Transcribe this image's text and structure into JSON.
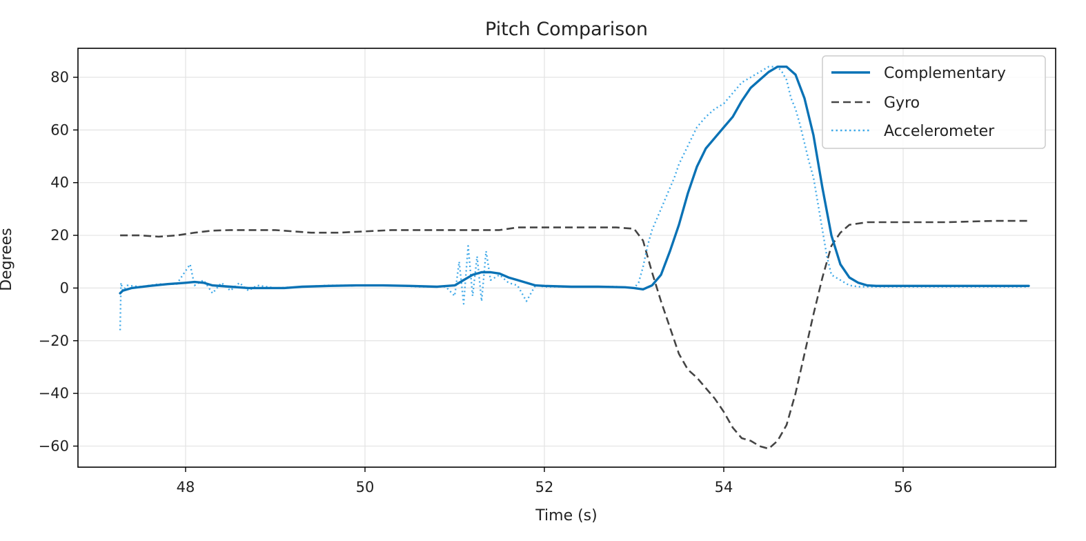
{
  "chart_data": {
    "type": "line",
    "title": "Pitch Comparison",
    "xlabel": "Time (s)",
    "ylabel": "Degrees",
    "xlim": [
      46.8,
      57.7
    ],
    "ylim": [
      -68,
      91
    ],
    "xticks": [
      48,
      50,
      52,
      54,
      56
    ],
    "yticks": [
      -60,
      -40,
      -20,
      0,
      20,
      40,
      60,
      80
    ],
    "xtick_labels": [
      "48",
      "50",
      "52",
      "54",
      "56"
    ],
    "ytick_labels": [
      "−60",
      "−40",
      "−20",
      "0",
      "20",
      "40",
      "60",
      "80"
    ],
    "grid": true,
    "legend_position": "top-right",
    "series": [
      {
        "name": "Complementary",
        "style": "solid",
        "color": "#0a72b5",
        "x": [
          47.27,
          47.3,
          47.4,
          47.6,
          47.8,
          48.0,
          48.1,
          48.2,
          48.3,
          48.5,
          48.7,
          48.9,
          49.1,
          49.3,
          49.6,
          49.9,
          50.2,
          50.5,
          50.8,
          51.0,
          51.1,
          51.2,
          51.3,
          51.4,
          51.5,
          51.6,
          51.7,
          51.8,
          51.9,
          52.0,
          52.3,
          52.6,
          52.9,
          53.0,
          53.1,
          53.2,
          53.3,
          53.4,
          53.5,
          53.6,
          53.7,
          53.8,
          53.9,
          54.0,
          54.1,
          54.2,
          54.3,
          54.4,
          54.5,
          54.6,
          54.7,
          54.8,
          54.9,
          55.0,
          55.1,
          55.2,
          55.3,
          55.4,
          55.5,
          55.6,
          55.7,
          55.8,
          56.0,
          56.3,
          56.6,
          57.0,
          57.4
        ],
        "values": [
          -2,
          -1,
          0,
          0.8,
          1.5,
          2.0,
          2.3,
          2.0,
          1.0,
          0.5,
          0,
          0,
          0,
          0.5,
          0.8,
          1.0,
          1.0,
          0.8,
          0.5,
          1.0,
          3,
          5,
          6,
          6,
          5.5,
          4,
          3,
          2,
          1,
          0.8,
          0.5,
          0.5,
          0.3,
          0,
          -0.5,
          1,
          5,
          14,
          24,
          36,
          46,
          53,
          57,
          61,
          65,
          71,
          76,
          79,
          82,
          84,
          84,
          81,
          72,
          58,
          38,
          20,
          9,
          4,
          2,
          1,
          0.8,
          0.8,
          0.8,
          0.8,
          0.8,
          0.8,
          0.8
        ]
      },
      {
        "name": "Gyro",
        "style": "dashed",
        "color": "#444444",
        "x": [
          47.27,
          47.5,
          47.7,
          47.9,
          48.1,
          48.3,
          48.5,
          48.8,
          49.0,
          49.2,
          49.4,
          49.7,
          50.0,
          50.3,
          50.6,
          50.9,
          51.2,
          51.5,
          51.7,
          52.0,
          52.4,
          52.8,
          53.0,
          53.1,
          53.2,
          53.3,
          53.4,
          53.5,
          53.6,
          53.7,
          53.8,
          53.9,
          54.0,
          54.1,
          54.2,
          54.3,
          54.4,
          54.5,
          54.6,
          54.7,
          54.8,
          54.9,
          55.0,
          55.1,
          55.2,
          55.3,
          55.4,
          55.6,
          56.0,
          56.5,
          57.0,
          57.4
        ],
        "values": [
          20,
          20,
          19.5,
          20,
          21,
          21.8,
          22,
          22,
          22,
          21.5,
          21,
          21,
          21.5,
          22,
          22,
          22,
          22,
          22,
          23,
          23,
          23,
          23,
          22.5,
          18,
          6,
          -5,
          -15,
          -25,
          -31,
          -34,
          -38,
          -42,
          -47,
          -53,
          -57,
          -58,
          -60,
          -61,
          -58,
          -52,
          -40,
          -25,
          -10,
          4,
          16,
          21,
          24,
          25,
          25,
          25,
          25.5,
          25.5
        ]
      },
      {
        "name": "Accelerometer",
        "style": "dotted",
        "color": "#3fa9e8",
        "x": [
          47.27,
          47.28,
          47.3,
          47.35,
          47.5,
          47.7,
          47.9,
          48.05,
          48.1,
          48.2,
          48.3,
          48.4,
          48.5,
          48.6,
          48.7,
          48.8,
          49.0,
          49.3,
          49.6,
          50.0,
          50.3,
          50.6,
          50.9,
          51.0,
          51.05,
          51.1,
          51.15,
          51.2,
          51.25,
          51.3,
          51.35,
          51.4,
          51.5,
          51.6,
          51.7,
          51.8,
          51.9,
          52.0,
          52.4,
          52.8,
          53.0,
          53.05,
          53.1,
          53.15,
          53.2,
          53.25,
          53.3,
          53.35,
          53.4,
          53.45,
          53.5,
          53.6,
          53.7,
          53.8,
          53.9,
          54.0,
          54.1,
          54.15,
          54.2,
          54.3,
          54.4,
          54.5,
          54.6,
          54.65,
          54.7,
          54.75,
          54.8,
          54.85,
          54.9,
          54.95,
          55.0,
          55.05,
          55.1,
          55.15,
          55.2,
          55.3,
          55.4,
          55.5,
          55.7,
          56.0,
          56.5,
          57.0,
          57.4
        ],
        "values": [
          -16,
          2,
          -1,
          1,
          0.5,
          1.5,
          1.5,
          9,
          1,
          3,
          -2,
          2,
          -1,
          2,
          -1,
          1,
          0,
          0.5,
          1,
          1,
          1,
          0.5,
          0.5,
          -3,
          10,
          -6,
          16,
          -3,
          12,
          -5,
          14,
          3,
          5,
          2,
          1,
          -5,
          1,
          0.5,
          0.5,
          0.5,
          0,
          2,
          8,
          16,
          22,
          26,
          30,
          34,
          38,
          42,
          47,
          54,
          61,
          65,
          68,
          70,
          74,
          76,
          78,
          80,
          82,
          84,
          84,
          82,
          79,
          72,
          68,
          62,
          55,
          48,
          42,
          32,
          22,
          12,
          5,
          3,
          1,
          0.5,
          0.5,
          0.5,
          0.5,
          0.5,
          0.5
        ]
      }
    ]
  }
}
